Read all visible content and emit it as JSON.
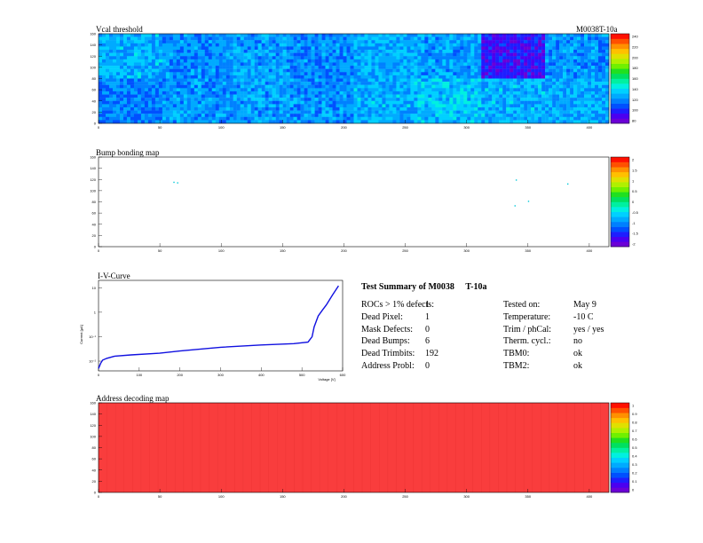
{
  "panels": {
    "vcal": {
      "title": "Vcal threshold",
      "module_label": "M0038T-10a",
      "palette_labels": [
        "240",
        "220",
        "200",
        "180",
        "160",
        "140",
        "120",
        "100",
        "80"
      ]
    },
    "bump": {
      "title": "Bump bonding map",
      "palette_labels": [
        "2",
        "1.5",
        "1",
        "0.5",
        "0",
        "-0.5",
        "-1",
        "-1.5",
        "-2"
      ]
    },
    "iv": {
      "title": "I-V-Curve",
      "ylabel": "Current [μA]",
      "xlabel": "Voltage [V]"
    },
    "addr": {
      "title": "Address decoding map",
      "palette_labels": [
        "1",
        "0.9",
        "0.8",
        "0.7",
        "0.6",
        "0.5",
        "0.4",
        "0.3",
        "0.2",
        "0.1",
        "0"
      ]
    }
  },
  "axes": {
    "map_x_ticks": [
      "0",
      "50",
      "100",
      "150",
      "200",
      "250",
      "300",
      "350",
      "400"
    ],
    "map_y_ticks": [
      "0",
      "20",
      "40",
      "60",
      "80",
      "100",
      "120",
      "140",
      "160"
    ],
    "iv_x_ticks": [
      "0",
      "100",
      "200",
      "300",
      "400",
      "500",
      "600"
    ],
    "iv_y_ticks": [
      "10",
      "1",
      "10⁻¹",
      "10⁻²"
    ]
  },
  "summary": {
    "heading": "Test Summary of M0038",
    "heading_suffix": "T-10a",
    "rows": [
      {
        "label": "ROCs > 1% defects:",
        "value": "1",
        "label2": "Tested on:",
        "value2": "May 9"
      },
      {
        "label": "Dead Pixel:",
        "value": "1",
        "label2": "Temperature:",
        "value2": "-10 C"
      },
      {
        "label": "Mask Defects:",
        "value": "0",
        "label2": "Trim / phCal:",
        "value2": "yes / yes"
      },
      {
        "label": "Dead Bumps:",
        "value": "6",
        "label2": "Therm. cycl.:",
        "value2": "no"
      },
      {
        "label": "Dead Trimbits:",
        "value": "192",
        "label2": "TBM0:",
        "value2": "ok"
      },
      {
        "label": "Address Probl:",
        "value": "0",
        "label2": "TBM2:",
        "value2": "ok"
      }
    ]
  },
  "chart_data": [
    {
      "type": "heatmap",
      "title": "Vcal threshold",
      "xlim": [
        0,
        416
      ],
      "ylim": [
        0,
        160
      ],
      "zlim": [
        60,
        250
      ],
      "roc_grid": {
        "cols": 8,
        "rows": 2
      },
      "roc_mean_top": [
        120,
        110,
        115,
        110,
        118,
        115,
        80,
        112
      ],
      "roc_mean_bottom": [
        108,
        112,
        115,
        112,
        120,
        125,
        120,
        118
      ]
    },
    {
      "type": "heatmap",
      "title": "Bump bonding map",
      "xlim": [
        0,
        416
      ],
      "ylim": [
        0,
        160
      ],
      "zlim": [
        -2,
        2
      ],
      "points": [
        [
          61,
          116
        ],
        [
          64,
          115
        ],
        [
          340,
          120
        ],
        [
          339,
          74
        ],
        [
          350,
          82
        ],
        [
          382,
          113
        ]
      ]
    },
    {
      "type": "line",
      "title": "I-V-Curve",
      "xlabel": "Voltage [V]",
      "ylabel": "Current [μA]",
      "xlim": [
        0,
        600
      ],
      "log_y": true,
      "x": [
        0,
        5,
        10,
        20,
        40,
        80,
        150,
        200,
        260,
        300,
        400,
        480,
        515,
        525,
        530,
        540,
        550,
        560,
        575,
        590
      ],
      "y": [
        0.005,
        0.008,
        0.011,
        0.013,
        0.016,
        0.018,
        0.021,
        0.026,
        0.032,
        0.037,
        0.046,
        0.052,
        0.06,
        0.1,
        0.25,
        0.7,
        1.2,
        2,
        5,
        12
      ]
    },
    {
      "type": "heatmap",
      "title": "Address decoding map",
      "xlim": [
        0,
        416
      ],
      "ylim": [
        0,
        160
      ],
      "zlim": [
        0,
        1
      ],
      "uniform_value": 1
    }
  ],
  "colors": {
    "red": "#f93d3d",
    "blue": "#2a6ce9",
    "frame": "#000000"
  }
}
